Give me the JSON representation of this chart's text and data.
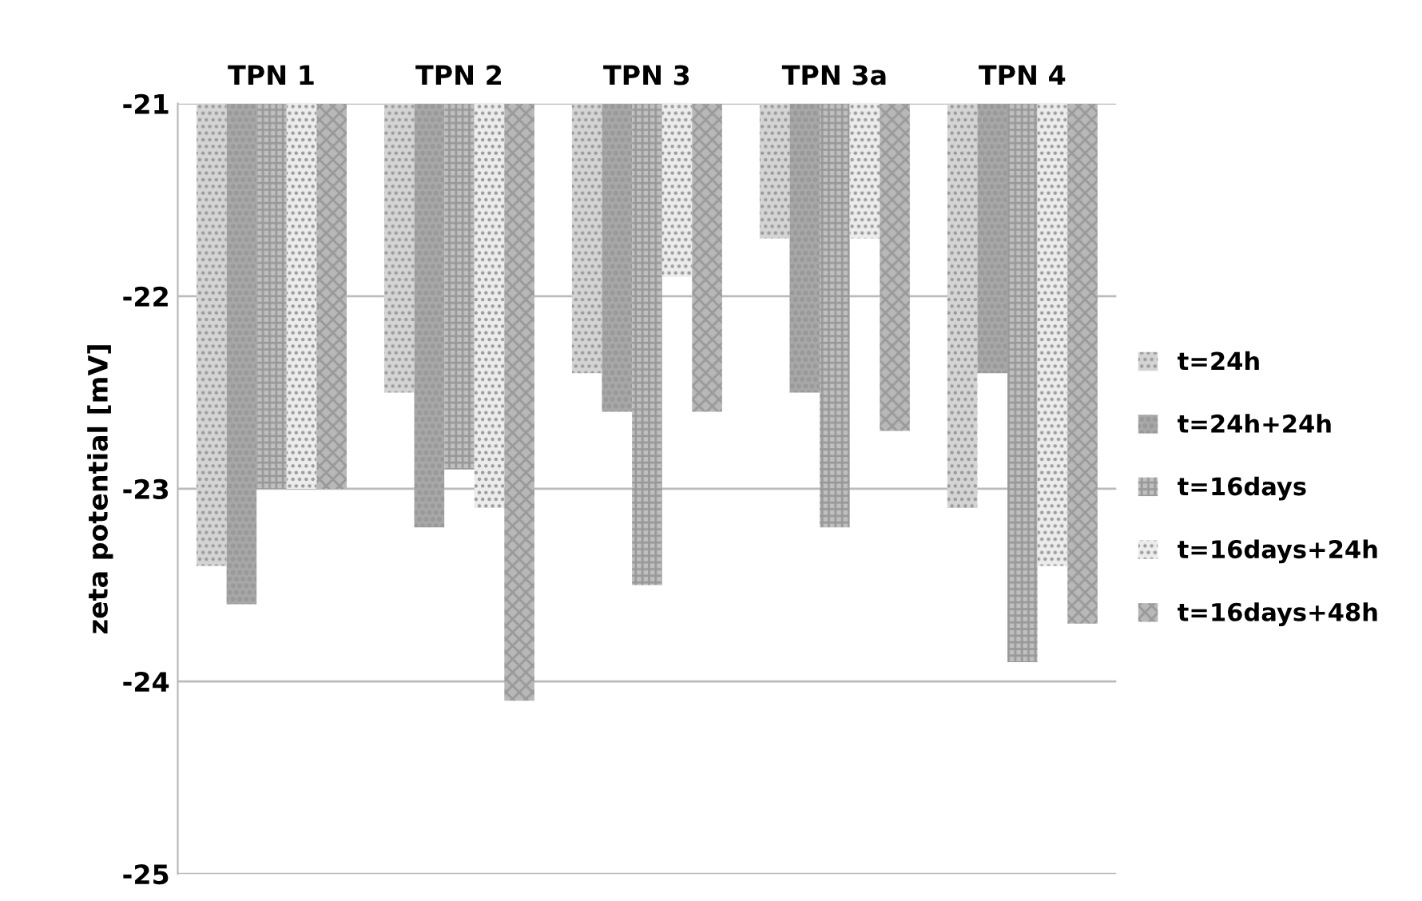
{
  "chart_data": {
    "type": "bar",
    "ylabel": "zeta potential [mV]",
    "categories": [
      "TPN 1",
      "TPN 2",
      "TPN 3",
      "TPN 3a",
      "TPN 4"
    ],
    "series": [
      {
        "name": "t=24h",
        "color": "#d4d4d4",
        "values": [
          -23.4,
          -22.5,
          -22.4,
          -21.7,
          -23.1
        ]
      },
      {
        "name": "t=24h+24h",
        "color": "#a8a8a8",
        "values": [
          -23.6,
          -23.2,
          -22.6,
          -22.5,
          -22.4
        ]
      },
      {
        "name": "t=16days",
        "color": "#c0c0c0",
        "values": [
          -23.0,
          -22.9,
          -23.5,
          -23.2,
          -23.9
        ]
      },
      {
        "name": "t=16days+24h",
        "color": "#ececec",
        "values": [
          -23.0,
          -23.1,
          -21.9,
          -21.7,
          -23.4
        ]
      },
      {
        "name": "t=16days+48h",
        "color": "#b8b8b8",
        "values": [
          -23.0,
          -24.1,
          -22.6,
          -22.7,
          -23.7
        ]
      }
    ],
    "ylim": [
      -25,
      -21
    ],
    "yticks": [
      -25,
      -24,
      -23,
      -22,
      -21
    ],
    "grid": "y",
    "legend": "right"
  }
}
